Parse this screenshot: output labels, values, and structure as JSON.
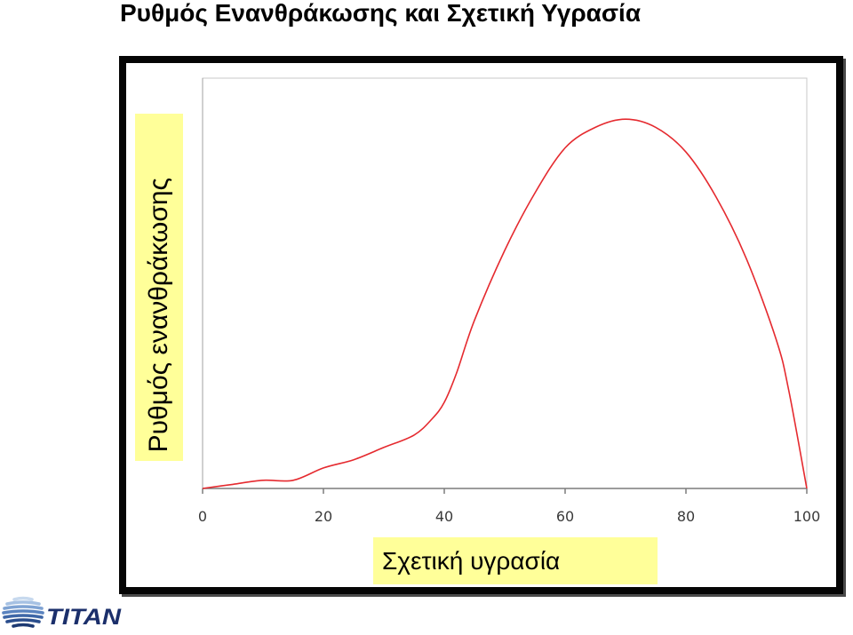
{
  "chart_data": {
    "type": "line",
    "title": "Ρυθμός Ενανθράκωσης και Σχετική Υγρασία",
    "xlabel": "Σχετική υγρασία",
    "ylabel": "Ρυθμός ενανθράκωσης",
    "xlim": [
      0,
      100
    ],
    "ylim": [
      0,
      1
    ],
    "x_ticks": [
      0,
      20,
      40,
      60,
      80,
      100
    ],
    "grid": false,
    "legend": "none",
    "series": [
      {
        "color": "#e52a2f",
        "x": [
          0,
          5,
          10,
          15,
          20,
          25,
          30,
          35,
          38,
          40,
          42,
          45,
          50,
          55,
          60,
          65,
          70,
          75,
          80,
          85,
          90,
          95,
          97,
          100
        ],
        "y": [
          0.0,
          0.01,
          0.02,
          0.02,
          0.05,
          0.07,
          0.1,
          0.13,
          0.17,
          0.21,
          0.28,
          0.41,
          0.58,
          0.72,
          0.83,
          0.88,
          0.9,
          0.88,
          0.82,
          0.71,
          0.56,
          0.36,
          0.24,
          0.0
        ]
      }
    ]
  },
  "colors": {
    "label_background": "#ffff99",
    "logo_navy": "#1b2f6b"
  },
  "logo": {
    "text": "TITAN"
  }
}
